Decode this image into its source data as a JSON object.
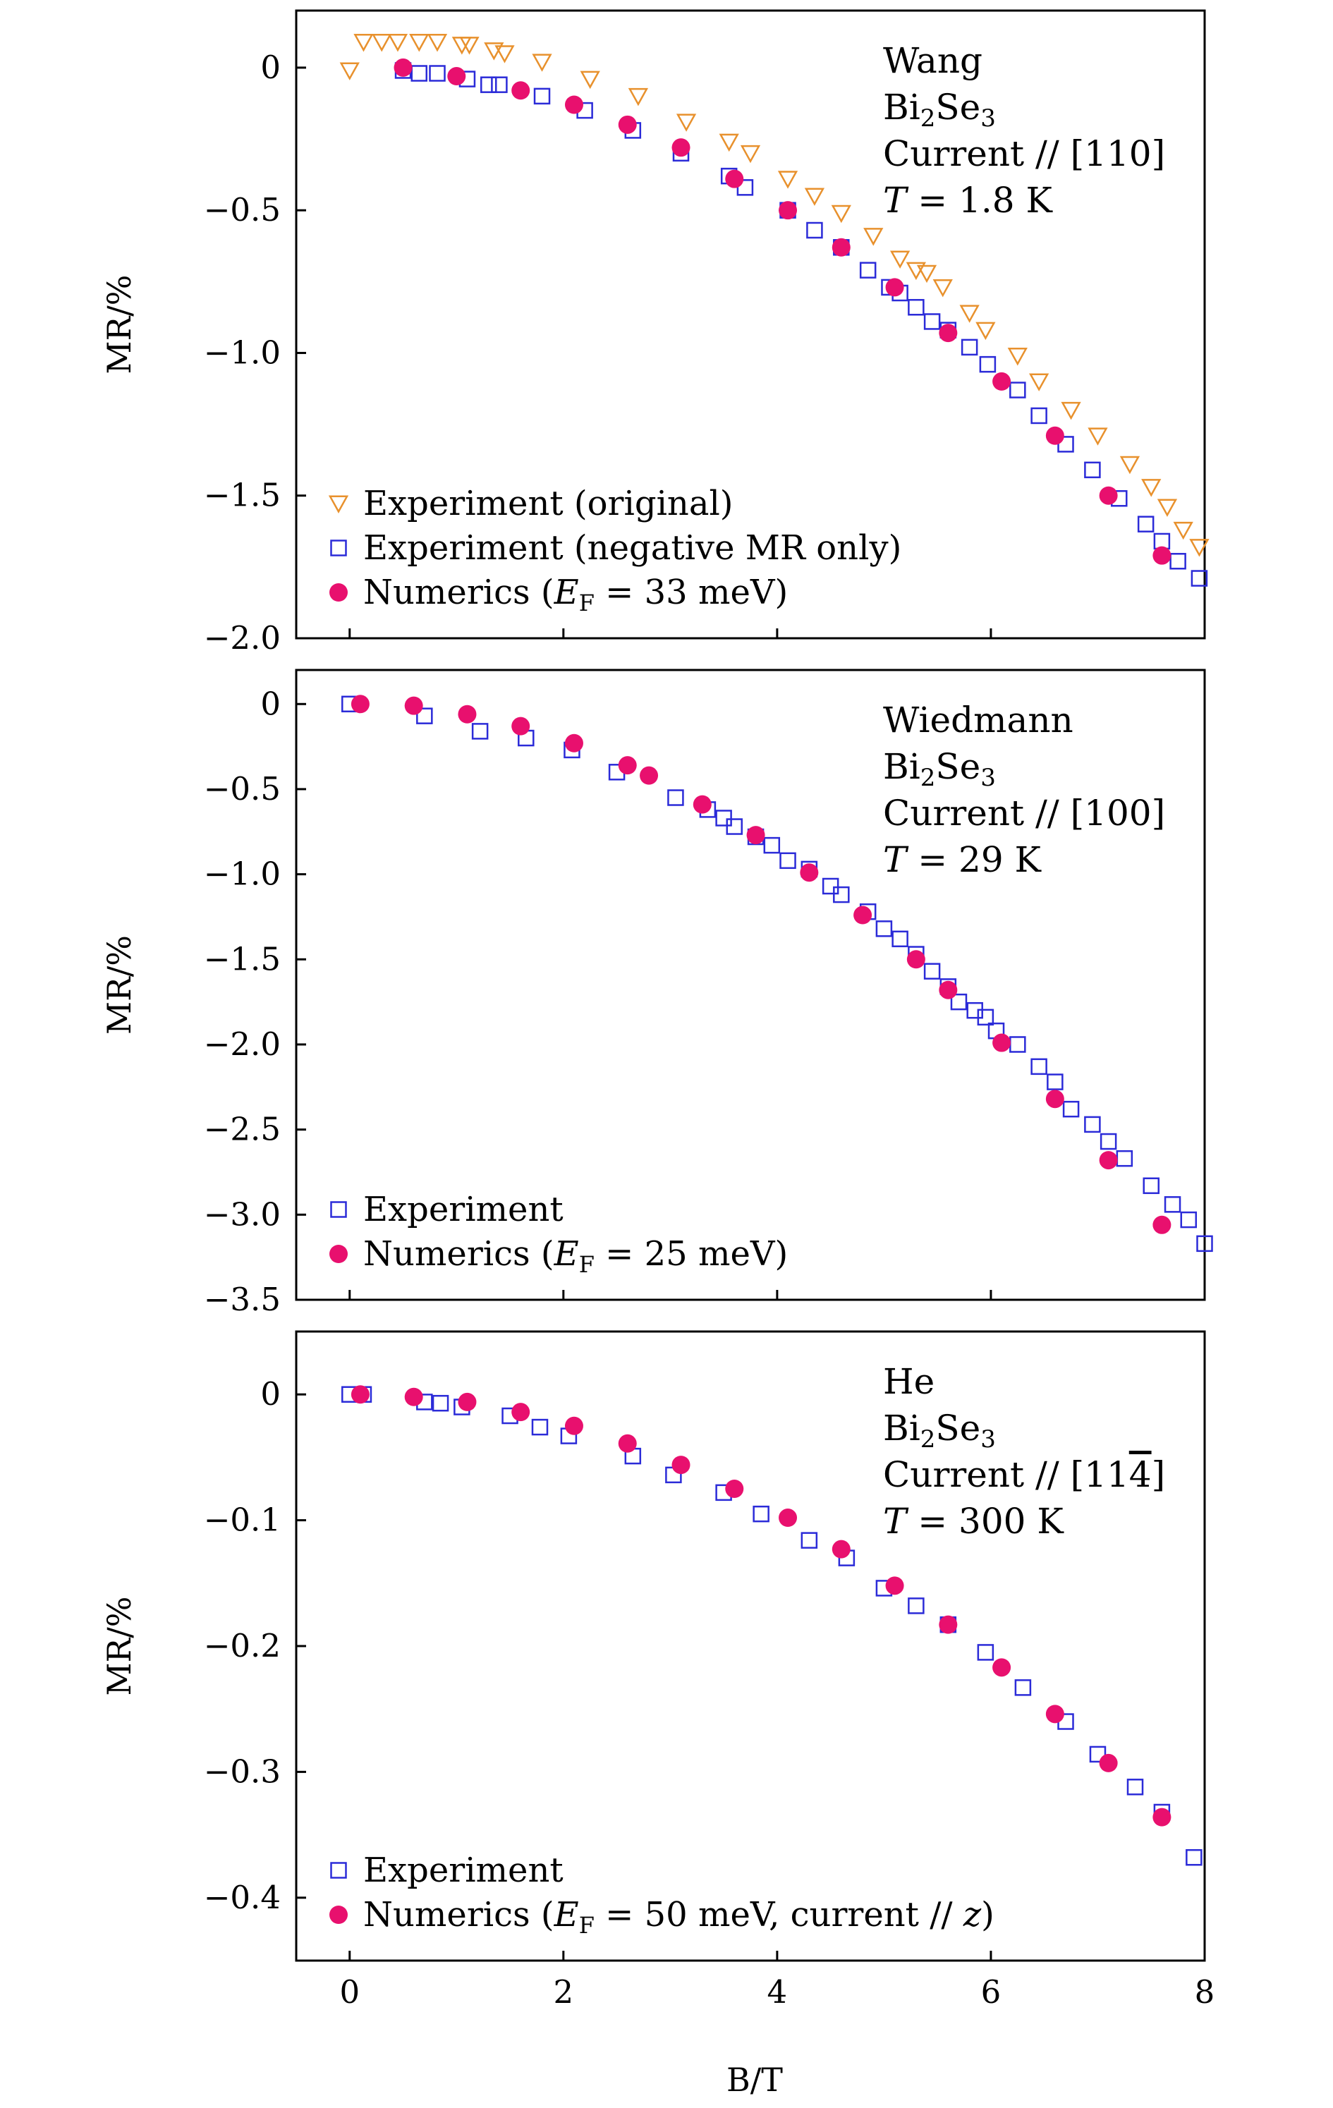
{
  "chart_data": [
    {
      "type": "scatter",
      "panel": "top",
      "xlabel": "B/T",
      "ylabel": "MR/%",
      "xlim": [
        -0.5,
        8
      ],
      "ylim": [
        -2.0,
        0.2
      ],
      "xticks": [
        0,
        2,
        4,
        6,
        8
      ],
      "xtick_labels": [
        "0",
        "2",
        "4",
        "6",
        "8"
      ],
      "yticks": [
        0,
        -0.5,
        -1.0,
        -1.5,
        -2.0
      ],
      "ytick_labels": [
        "0",
        "−0.5",
        "−1.0",
        "−1.5",
        "−2.0"
      ],
      "annotation": [
        {
          "text": "Wang"
        },
        {
          "text": "Bi",
          "sub1": "2",
          "mid": "Se",
          "sub2": "3"
        },
        {
          "text": "Current // [110]"
        },
        {
          "var": "T",
          "text": " = 1.8 K"
        }
      ],
      "legend_position": "bottom-left",
      "series": [
        {
          "name": "Experiment (original)",
          "legend": {
            "text": "Experiment (original)"
          },
          "marker": "triangle-down-open",
          "color": "#E8912D",
          "x": [
            0.0,
            0.13,
            0.3,
            0.45,
            0.65,
            0.82,
            1.05,
            1.12,
            1.35,
            1.45,
            1.8,
            2.25,
            2.7,
            3.15,
            3.55,
            3.75,
            4.1,
            4.35,
            4.6,
            4.9,
            5.15,
            5.3,
            5.4,
            5.55,
            5.8,
            5.95,
            6.25,
            6.45,
            6.75,
            7.0,
            7.3,
            7.5,
            7.65,
            7.8,
            7.95
          ],
          "y": [
            -0.01,
            0.09,
            0.09,
            0.09,
            0.09,
            0.09,
            0.08,
            0.08,
            0.06,
            0.05,
            0.02,
            -0.04,
            -0.1,
            -0.19,
            -0.26,
            -0.3,
            -0.39,
            -0.45,
            -0.51,
            -0.59,
            -0.67,
            -0.71,
            -0.72,
            -0.77,
            -0.86,
            -0.92,
            -1.01,
            -1.1,
            -1.2,
            -1.29,
            -1.39,
            -1.47,
            -1.54,
            -1.62,
            -1.68
          ]
        },
        {
          "name": "Experiment (negative MR only)",
          "legend": {
            "text": "Experiment (negative MR only)"
          },
          "marker": "square-open",
          "color": "#2B2BD8",
          "x": [
            0.5,
            0.65,
            0.82,
            1.1,
            1.3,
            1.4,
            1.8,
            2.2,
            2.65,
            3.1,
            3.55,
            3.7,
            4.1,
            4.35,
            4.6,
            4.85,
            5.05,
            5.15,
            5.3,
            5.45,
            5.6,
            5.8,
            5.97,
            6.25,
            6.45,
            6.7,
            6.95,
            7.2,
            7.45,
            7.6,
            7.75,
            7.95
          ],
          "y": [
            -0.01,
            -0.02,
            -0.02,
            -0.04,
            -0.06,
            -0.06,
            -0.1,
            -0.15,
            -0.22,
            -0.3,
            -0.38,
            -0.42,
            -0.5,
            -0.57,
            -0.63,
            -0.71,
            -0.77,
            -0.79,
            -0.84,
            -0.89,
            -0.92,
            -0.98,
            -1.04,
            -1.13,
            -1.22,
            -1.32,
            -1.41,
            -1.51,
            -1.6,
            -1.66,
            -1.73,
            -1.79
          ]
        },
        {
          "name": "Numerics",
          "legend": {
            "text": "Numerics (",
            "var": "E",
            "sub": "F",
            "text2": " = 33 meV)"
          },
          "marker": "circle-filled",
          "color": "#E8106E",
          "x": [
            0.5,
            1.0,
            1.6,
            2.1,
            2.6,
            3.1,
            3.6,
            4.1,
            4.6,
            5.1,
            5.6,
            6.1,
            6.6,
            7.1,
            7.6
          ],
          "y": [
            0.0,
            -0.03,
            -0.08,
            -0.13,
            -0.2,
            -0.28,
            -0.39,
            -0.5,
            -0.63,
            -0.77,
            -0.93,
            -1.1,
            -1.29,
            -1.5,
            -1.71
          ]
        }
      ]
    },
    {
      "type": "scatter",
      "panel": "middle",
      "xlabel": "B/T",
      "ylabel": "MR/%",
      "xlim": [
        -0.5,
        8
      ],
      "ylim": [
        -3.5,
        0.2
      ],
      "xticks": [
        0,
        2,
        4,
        6,
        8
      ],
      "xtick_labels": [
        "0",
        "2",
        "4",
        "6",
        "8"
      ],
      "yticks": [
        0,
        -0.5,
        -1.0,
        -1.5,
        -2.0,
        -2.5,
        -3.0,
        -3.5
      ],
      "ytick_labels": [
        "0",
        "−0.5",
        "−1.0",
        "−1.5",
        "−2.0",
        "−2.5",
        "−3.0",
        "−3.5"
      ],
      "annotation": [
        {
          "text": "Wiedmann"
        },
        {
          "text": "Bi",
          "sub1": "2",
          "mid": "Se",
          "sub2": "3"
        },
        {
          "text": "Current // [100]"
        },
        {
          "var": "T",
          "text": " = 29 K"
        }
      ],
      "legend_position": "bottom-left",
      "series": [
        {
          "name": "Experiment",
          "legend": {
            "text": "Experiment"
          },
          "marker": "square-open",
          "color": "#2B2BD8",
          "x": [
            0.0,
            0.7,
            1.22,
            1.65,
            2.08,
            2.5,
            3.05,
            3.35,
            3.5,
            3.6,
            3.8,
            3.95,
            4.1,
            4.3,
            4.5,
            4.6,
            4.85,
            5.0,
            5.15,
            5.3,
            5.45,
            5.6,
            5.7,
            5.85,
            5.95,
            6.05,
            6.25,
            6.45,
            6.6,
            6.75,
            6.95,
            7.1,
            7.25,
            7.5,
            7.7,
            7.85,
            8.0
          ],
          "y": [
            0.0,
            -0.07,
            -0.16,
            -0.2,
            -0.27,
            -0.4,
            -0.55,
            -0.62,
            -0.67,
            -0.72,
            -0.78,
            -0.83,
            -0.92,
            -0.97,
            -1.07,
            -1.12,
            -1.22,
            -1.32,
            -1.38,
            -1.47,
            -1.57,
            -1.66,
            -1.75,
            -1.8,
            -1.84,
            -1.92,
            -2.0,
            -2.13,
            -2.22,
            -2.38,
            -2.47,
            -2.57,
            -2.67,
            -2.83,
            -2.94,
            -3.03,
            -3.17
          ]
        },
        {
          "name": "Numerics",
          "legend": {
            "text": "Numerics (",
            "var": "E",
            "sub": "F",
            "text2": " = 25 meV)"
          },
          "marker": "circle-filled",
          "color": "#E8106E",
          "x": [
            0.1,
            0.6,
            1.1,
            1.6,
            2.1,
            2.6,
            2.8,
            3.3,
            3.8,
            4.3,
            4.8,
            5.3,
            5.6,
            6.1,
            6.6,
            7.1,
            7.6
          ],
          "y": [
            0.0,
            -0.01,
            -0.06,
            -0.13,
            -0.23,
            -0.36,
            -0.42,
            -0.59,
            -0.77,
            -0.99,
            -1.24,
            -1.5,
            -1.68,
            -1.99,
            -2.32,
            -2.68,
            -3.06
          ]
        }
      ]
    },
    {
      "type": "scatter",
      "panel": "bottom",
      "xlabel": "B/T",
      "ylabel": "MR/%",
      "xlim": [
        -0.5,
        8
      ],
      "ylim": [
        -0.45,
        0.05
      ],
      "xticks": [
        0,
        2,
        4,
        6,
        8
      ],
      "xtick_labels": [
        "0",
        "2",
        "4",
        "6",
        "8"
      ],
      "yticks": [
        0,
        -0.1,
        -0.2,
        -0.3,
        -0.4
      ],
      "ytick_labels": [
        "0",
        "−0.1",
        "−0.2",
        "−0.3",
        "−0.4"
      ],
      "annotation": [
        {
          "text": "He"
        },
        {
          "text": "Bi",
          "sub1": "2",
          "mid": "Se",
          "sub2": "3"
        },
        {
          "text": "Current // [11",
          "bar": "4",
          "text2": "]"
        },
        {
          "var": "T",
          "text": " = 300 K"
        }
      ],
      "legend_position": "bottom-left",
      "series": [
        {
          "name": "Experiment",
          "legend": {
            "text": "Experiment"
          },
          "marker": "square-open",
          "color": "#2B2BD8",
          "x": [
            0.0,
            0.13,
            0.7,
            0.85,
            1.05,
            1.5,
            1.78,
            2.05,
            2.65,
            3.03,
            3.5,
            3.85,
            4.3,
            4.65,
            5.0,
            5.3,
            5.6,
            5.95,
            6.3,
            6.7,
            7.0,
            7.35,
            7.6,
            7.9
          ],
          "y": [
            0.0,
            0.0,
            -0.006,
            -0.007,
            -0.01,
            -0.017,
            -0.026,
            -0.033,
            -0.049,
            -0.064,
            -0.078,
            -0.095,
            -0.116,
            -0.13,
            -0.154,
            -0.168,
            -0.183,
            -0.205,
            -0.233,
            -0.26,
            -0.286,
            -0.312,
            -0.332,
            -0.368
          ]
        },
        {
          "name": "Numerics",
          "legend": {
            "text": "Numerics (",
            "var": "E",
            "sub": "F",
            "text2": " = 50 meV, current // ",
            "var2": "z",
            "text3": ")"
          },
          "marker": "circle-filled",
          "color": "#E8106E",
          "x": [
            0.1,
            0.6,
            1.1,
            1.6,
            2.1,
            2.6,
            3.1,
            3.6,
            4.1,
            4.6,
            5.1,
            5.6,
            6.1,
            6.6,
            7.1,
            7.6
          ],
          "y": [
            0.0,
            -0.002,
            -0.006,
            -0.014,
            -0.025,
            -0.039,
            -0.056,
            -0.075,
            -0.098,
            -0.123,
            -0.152,
            -0.183,
            -0.217,
            -0.254,
            -0.293,
            -0.336
          ]
        }
      ]
    }
  ]
}
